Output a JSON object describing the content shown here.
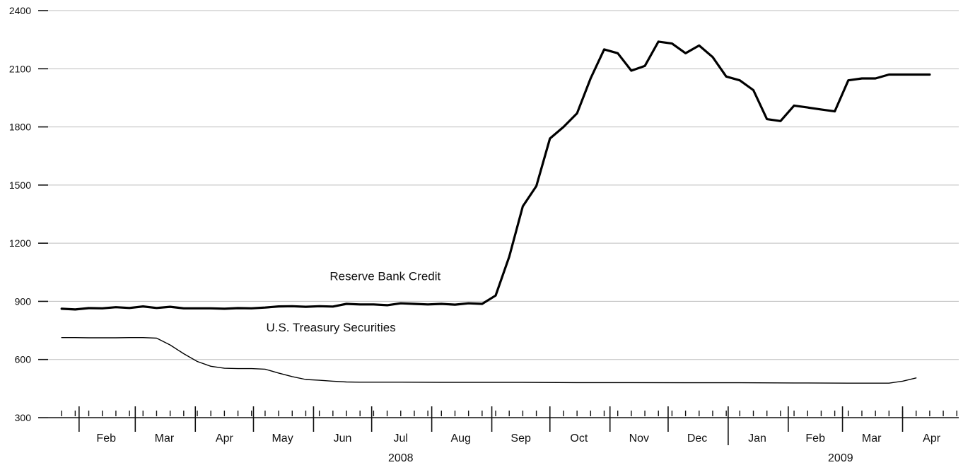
{
  "chart_data": {
    "type": "line",
    "title": "",
    "xlabel": "",
    "ylabel": "",
    "ylim": [
      300,
      2400
    ],
    "yticks": [
      300,
      600,
      900,
      1200,
      1500,
      1800,
      2100,
      2400
    ],
    "grid": true,
    "x_range": [
      "2008-01-16",
      "2009-04-30"
    ],
    "month_labels": [
      "Feb",
      "Mar",
      "Apr",
      "May",
      "Jun",
      "Jul",
      "Aug",
      "Sep",
      "Oct",
      "Nov",
      "Dec",
      "Jan",
      "Feb",
      "Mar",
      "Apr"
    ],
    "year_labels": [
      "2008",
      "2009"
    ],
    "series": [
      {
        "name": "Reserve Bank Credit",
        "weight": "bold",
        "x": [
          "2008-01-23",
          "2008-01-30",
          "2008-02-06",
          "2008-02-13",
          "2008-02-20",
          "2008-02-27",
          "2008-03-05",
          "2008-03-12",
          "2008-03-19",
          "2008-03-26",
          "2008-04-02",
          "2008-04-09",
          "2008-04-16",
          "2008-04-23",
          "2008-04-30",
          "2008-05-07",
          "2008-05-14",
          "2008-05-21",
          "2008-05-28",
          "2008-06-04",
          "2008-06-11",
          "2008-06-18",
          "2008-06-25",
          "2008-07-02",
          "2008-07-09",
          "2008-07-16",
          "2008-07-23",
          "2008-07-30",
          "2008-08-06",
          "2008-08-13",
          "2008-08-20",
          "2008-08-27",
          "2008-09-03",
          "2008-09-10",
          "2008-09-17",
          "2008-09-24",
          "2008-10-01",
          "2008-10-08",
          "2008-10-15",
          "2008-10-22",
          "2008-10-29",
          "2008-11-05",
          "2008-11-12",
          "2008-11-19",
          "2008-11-26",
          "2008-12-03",
          "2008-12-10",
          "2008-12-17",
          "2008-12-24",
          "2008-12-31",
          "2009-01-07",
          "2009-01-14",
          "2009-01-21",
          "2009-01-28",
          "2009-02-04",
          "2009-02-11",
          "2009-02-18",
          "2009-02-25",
          "2009-03-04",
          "2009-03-11",
          "2009-03-18",
          "2009-03-25",
          "2009-04-01",
          "2009-04-08",
          "2009-04-15"
        ],
        "values": [
          862,
          858,
          865,
          864,
          870,
          866,
          874,
          866,
          872,
          864,
          864,
          864,
          862,
          865,
          864,
          868,
          874,
          875,
          872,
          875,
          873,
          887,
          884,
          884,
          880,
          890,
          887,
          884,
          887,
          883,
          890,
          887,
          930,
          1130,
          1390,
          1495,
          1740,
          1800,
          1870,
          2050,
          2200,
          2180,
          2090,
          2115,
          2240,
          2230,
          2180,
          2220,
          2160,
          2060,
          2040,
          1990,
          1840,
          1830,
          1910,
          1900,
          1890,
          1880,
          2040,
          2050,
          2050,
          2070,
          2070,
          2070,
          2070
        ]
      },
      {
        "name": "U.S. Treasury Securities",
        "weight": "thin",
        "x": [
          "2008-01-23",
          "2008-01-30",
          "2008-02-06",
          "2008-02-13",
          "2008-02-20",
          "2008-02-27",
          "2008-03-05",
          "2008-03-12",
          "2008-03-19",
          "2008-03-26",
          "2008-04-02",
          "2008-04-09",
          "2008-04-16",
          "2008-04-23",
          "2008-04-30",
          "2008-05-07",
          "2008-05-14",
          "2008-05-21",
          "2008-05-28",
          "2008-06-04",
          "2008-06-11",
          "2008-06-18",
          "2008-06-25",
          "2008-07-02",
          "2008-07-16",
          "2008-08-06",
          "2008-08-27",
          "2008-09-17",
          "2008-10-15",
          "2008-11-12",
          "2008-12-10",
          "2009-01-07",
          "2009-02-04",
          "2009-03-04",
          "2009-03-25",
          "2009-04-01",
          "2009-04-08"
        ],
        "values": [
          713,
          713,
          712,
          712,
          712,
          713,
          713,
          710,
          675,
          630,
          590,
          565,
          555,
          553,
          553,
          550,
          530,
          512,
          497,
          493,
          488,
          484,
          483,
          483,
          483,
          482,
          482,
          482,
          481,
          481,
          480,
          480,
          479,
          478,
          478,
          488,
          505
        ]
      }
    ],
    "annotations": [
      {
        "text": "Reserve Bank Credit",
        "x": "2008-07-08",
        "y": 1010
      },
      {
        "text": "U.S. Treasury Securities",
        "x": "2008-06-10",
        "y": 745
      }
    ]
  }
}
